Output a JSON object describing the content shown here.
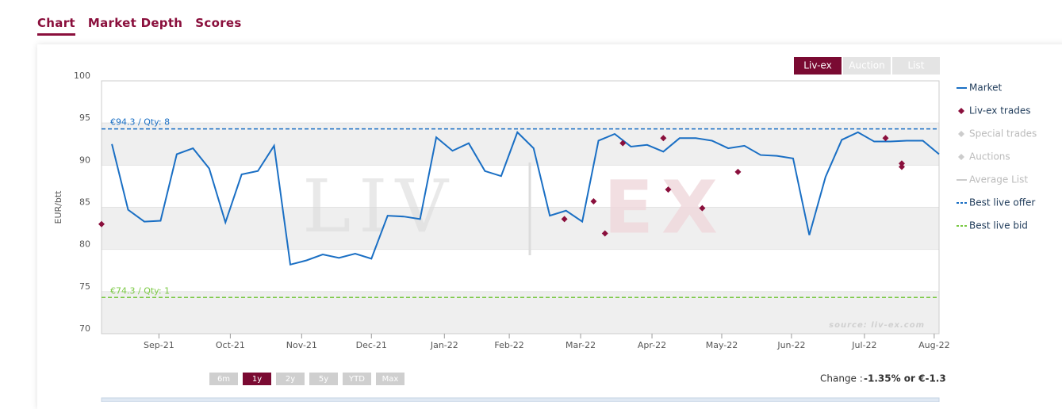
{
  "tabs": [
    "Chart",
    "Market Depth",
    "Scores"
  ],
  "source_buttons": [
    "Liv-ex",
    "Auction",
    "List"
  ],
  "range_buttons": [
    "6m",
    "1y",
    "2y",
    "5y",
    "YTD",
    "Max"
  ],
  "change": {
    "label": "Change :",
    "value": "-1.35% or €-1.3"
  },
  "chart_data": {
    "type": "line",
    "ylabel": "EUR/btt",
    "ylim": [
      70,
      100
    ],
    "yticks": [
      70,
      75,
      80,
      85,
      90,
      95,
      100
    ],
    "alternate_bands": true,
    "xlim": [
      -0.64,
      51
    ],
    "xticks": [
      {
        "value": 2.9,
        "label": "Sep-21"
      },
      {
        "value": 7.3,
        "label": "Oct-21"
      },
      {
        "value": 11.7,
        "label": "Nov-21"
      },
      {
        "value": 16.0,
        "label": "Dec-21"
      },
      {
        "value": 20.5,
        "label": "Jan-22"
      },
      {
        "value": 24.5,
        "label": "Feb-22"
      },
      {
        "value": 28.9,
        "label": "Mar-22"
      },
      {
        "value": 33.3,
        "label": "Apr-22"
      },
      {
        "value": 37.6,
        "label": "May-22"
      },
      {
        "value": 41.9,
        "label": "Jun-22"
      },
      {
        "value": 46.4,
        "label": "Jul-22"
      },
      {
        "value": 50.7,
        "label": "Aug-22"
      }
    ],
    "watermark": [
      "LIV",
      "EX"
    ],
    "source": "source: liv-ex.com",
    "series": [
      {
        "name": "Market",
        "type": "line",
        "color": "#1a6fc4",
        "x": [
          0,
          1,
          2,
          3,
          4,
          5,
          6,
          7,
          8,
          9,
          10,
          11,
          12,
          13,
          14,
          15,
          16,
          17,
          18,
          19,
          20,
          21,
          22,
          23,
          24,
          25,
          26,
          27,
          28,
          29,
          30,
          31,
          32,
          33,
          34,
          35,
          36,
          37,
          38,
          39,
          40,
          41,
          42,
          43,
          44,
          45,
          46,
          47,
          48,
          49,
          50,
          51
        ],
        "values": [
          92.5,
          84.7,
          83.3,
          83.4,
          91.3,
          92.0,
          89.6,
          83.2,
          88.9,
          89.3,
          92.3,
          78.2,
          78.7,
          79.4,
          79.0,
          79.5,
          78.9,
          84.0,
          83.9,
          83.6,
          93.3,
          91.7,
          92.6,
          89.3,
          88.7,
          93.9,
          92.0,
          84.0,
          84.6,
          83.3,
          92.9,
          93.7,
          92.2,
          92.4,
          91.6,
          93.2,
          93.2,
          92.9,
          92.0,
          92.3,
          91.2,
          91.1,
          90.8,
          81.7,
          88.6,
          93.0,
          93.9,
          92.8,
          92.8,
          92.9,
          92.9,
          91.3
        ]
      },
      {
        "name": "Liv-ex trades",
        "type": "scatter",
        "color": "#8a0f3c",
        "x": [
          -0.64,
          27.9,
          29.7,
          30.4,
          31.5,
          34.0,
          34.3,
          36.4,
          38.6,
          47.7,
          48.7,
          48.7
        ],
        "values": [
          83.0,
          83.6,
          85.7,
          81.9,
          92.6,
          93.2,
          87.1,
          84.9,
          89.2,
          93.2,
          90.2,
          89.8
        ]
      },
      {
        "name": "Special trades",
        "type": "scatter",
        "color": "#cccccc",
        "visible": false
      },
      {
        "name": "Auctions",
        "type": "scatter",
        "color": "#cccccc",
        "visible": false
      },
      {
        "name": "Average List",
        "type": "line",
        "color": "#cccccc",
        "visible": false
      },
      {
        "name": "Best live offer",
        "type": "hline",
        "color": "#1a6fc4",
        "dashed": true,
        "values": [
          94.3
        ],
        "label": "€94.3 / Qty: 8"
      },
      {
        "name": "Best live bid",
        "type": "hline",
        "color": "#7ac943",
        "dashed": true,
        "values": [
          74.3
        ],
        "label": "€74.3 / Qty: 1"
      }
    ]
  }
}
